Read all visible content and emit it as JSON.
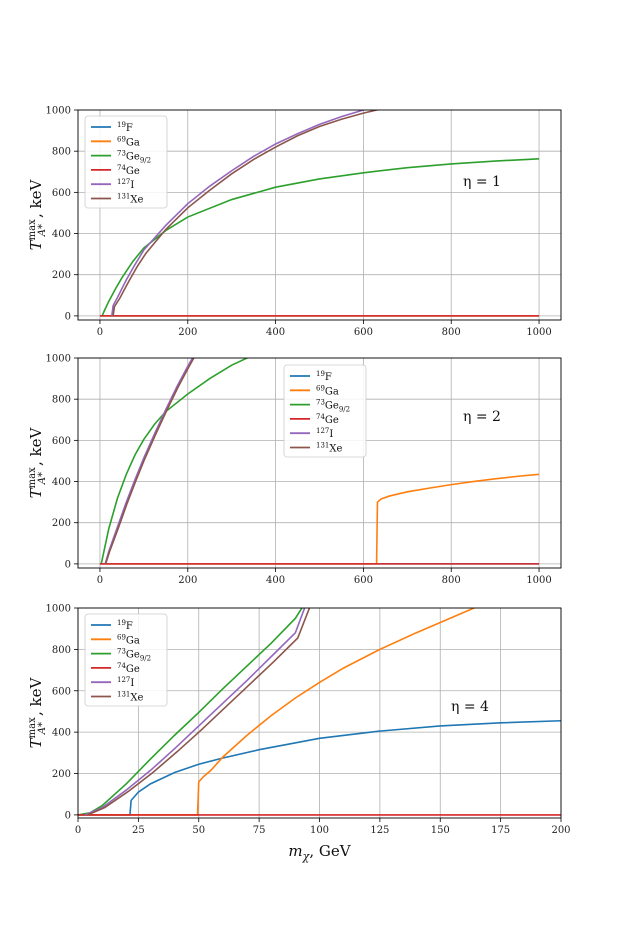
{
  "chart_data": [
    {
      "type": "line",
      "annotation": "η = 1",
      "xlim": [
        -50,
        1050
      ],
      "ylim": [
        -20,
        1000
      ],
      "xticks": [
        0,
        200,
        400,
        600,
        800,
        1000
      ],
      "yticks": [
        0,
        200,
        400,
        600,
        800,
        1000
      ],
      "ylabel": "T^max_A*, keV",
      "xlabel": "",
      "grid": true,
      "legend_placement": "upper-left",
      "series": [
        {
          "name": "19F",
          "iso": "19",
          "el": "F",
          "sub": "",
          "color": "#1f77b4",
          "x": [
            0,
            1000
          ],
          "y": [
            0,
            0
          ]
        },
        {
          "name": "69Ga",
          "iso": "69",
          "el": "Ga",
          "sub": "",
          "color": "#ff7f0e",
          "x": [
            0,
            1000
          ],
          "y": [
            0,
            0
          ]
        },
        {
          "name": "73Ge9/2",
          "iso": "73",
          "el": "Ge",
          "sub": "9/2",
          "color": "#2ca02c",
          "x": [
            5,
            10,
            20,
            35,
            50,
            75,
            100,
            150,
            200,
            300,
            400,
            500,
            600,
            700,
            800,
            900,
            1000
          ],
          "y": [
            0,
            25,
            70,
            130,
            185,
            265,
            330,
            415,
            480,
            565,
            625,
            665,
            695,
            720,
            738,
            752,
            763
          ]
        },
        {
          "name": "74Ge",
          "iso": "74",
          "el": "Ge",
          "sub": "",
          "color": "#d62728",
          "x": [
            0,
            1000
          ],
          "y": [
            0,
            0
          ]
        },
        {
          "name": "127I",
          "iso": "127",
          "el": "I",
          "sub": "",
          "color": "#9467bd",
          "x": [
            27,
            30,
            40,
            60,
            80,
            100,
            150,
            200,
            250,
            300,
            350,
            400,
            450,
            500,
            550,
            600,
            615
          ],
          "y": [
            0,
            50,
            90,
            175,
            250,
            320,
            440,
            545,
            630,
            705,
            775,
            835,
            885,
            930,
            968,
            1000,
            1005
          ]
        },
        {
          "name": "131Xe",
          "iso": "131",
          "el": "Xe",
          "sub": "",
          "color": "#8c564b",
          "x": [
            30,
            33,
            45,
            65,
            85,
            105,
            150,
            200,
            250,
            300,
            350,
            400,
            450,
            500,
            550,
            600,
            640
          ],
          "y": [
            0,
            45,
            85,
            165,
            240,
            305,
            420,
            525,
            610,
            690,
            760,
            820,
            875,
            920,
            955,
            985,
            1005
          ]
        }
      ]
    },
    {
      "type": "line",
      "annotation": "η = 2",
      "xlim": [
        -50,
        1050
      ],
      "ylim": [
        -20,
        1000
      ],
      "xticks": [
        0,
        200,
        400,
        600,
        800,
        1000
      ],
      "yticks": [
        0,
        200,
        400,
        600,
        800,
        1000
      ],
      "ylabel": "T^max_A*, keV",
      "xlabel": "",
      "grid": true,
      "legend_placement": "upper-center",
      "series": [
        {
          "name": "19F",
          "iso": "19",
          "el": "F",
          "sub": "",
          "color": "#1f77b4",
          "x": [
            0,
            1000
          ],
          "y": [
            0,
            0
          ]
        },
        {
          "name": "69Ga",
          "iso": "69",
          "el": "Ga",
          "sub": "",
          "color": "#ff7f0e",
          "x": [
            0,
            630,
            630,
            632,
            640,
            660,
            700,
            750,
            800,
            850,
            900,
            950,
            1000
          ],
          "y": [
            0,
            0,
            0,
            300,
            315,
            330,
            350,
            368,
            385,
            400,
            413,
            425,
            435
          ]
        },
        {
          "name": "73Ge9/2",
          "iso": "73",
          "el": "Ge",
          "sub": "9/2",
          "color": "#2ca02c",
          "x": [
            3,
            10,
            20,
            40,
            60,
            80,
            100,
            125,
            150,
            200,
            250,
            300,
            340
          ],
          "y": [
            0,
            70,
            170,
            320,
            435,
            530,
            605,
            680,
            740,
            825,
            900,
            965,
            1005
          ]
        },
        {
          "name": "74Ge",
          "iso": "74",
          "el": "Ge",
          "sub": "",
          "color": "#d62728",
          "x": [
            0,
            1000
          ],
          "y": [
            0,
            0
          ]
        },
        {
          "name": "127I",
          "iso": "127",
          "el": "I",
          "sub": "",
          "color": "#9467bd",
          "x": [
            12,
            20,
            40,
            60,
            80,
            100,
            125,
            150,
            175,
            200,
            212
          ],
          "y": [
            0,
            60,
            180,
            300,
            410,
            515,
            635,
            750,
            860,
            960,
            1005
          ]
        },
        {
          "name": "131Xe",
          "iso": "131",
          "el": "Xe",
          "sub": "",
          "color": "#8c564b",
          "x": [
            13,
            22,
            42,
            62,
            82,
            102,
            127,
            152,
            177,
            202,
            215
          ],
          "y": [
            0,
            60,
            175,
            295,
            405,
            510,
            630,
            745,
            855,
            955,
            1005
          ]
        }
      ]
    },
    {
      "type": "line",
      "annotation": "η = 4",
      "xlim": [
        0,
        200
      ],
      "ylim": [
        -15,
        1000
      ],
      "xticks": [
        0,
        25,
        50,
        75,
        100,
        125,
        150,
        175,
        200
      ],
      "yticks": [
        0,
        200,
        400,
        600,
        800,
        1000
      ],
      "ylabel": "T^max_A*, keV",
      "xlabel": "m_χ, GeV",
      "grid": true,
      "legend_placement": "upper-left",
      "series": [
        {
          "name": "19F",
          "iso": "19",
          "el": "F",
          "sub": "",
          "color": "#1f77b4",
          "x": [
            0,
            21.5,
            21.5,
            22,
            25,
            30,
            40,
            50,
            60,
            75,
            100,
            125,
            150,
            175,
            200
          ],
          "y": [
            0,
            0,
            0,
            70,
            110,
            150,
            205,
            245,
            275,
            315,
            370,
            405,
            430,
            445,
            455
          ]
        },
        {
          "name": "69Ga",
          "iso": "69",
          "el": "Ga",
          "sub": "",
          "color": "#ff7f0e",
          "x": [
            0,
            49.5,
            49.5,
            50,
            52,
            55,
            60,
            70,
            80,
            90,
            100,
            110,
            125,
            140,
            150,
            160,
            165
          ],
          "y": [
            0,
            0,
            0,
            160,
            185,
            215,
            280,
            385,
            480,
            565,
            640,
            710,
            800,
            880,
            930,
            980,
            1005
          ]
        },
        {
          "name": "73Ge9/2",
          "iso": "73",
          "el": "Ge",
          "sub": "9/2",
          "color": "#2ca02c",
          "x": [
            0,
            5,
            10,
            20,
            30,
            40,
            50,
            60,
            70,
            80,
            90,
            93
          ],
          "y": [
            0,
            10,
            45,
            150,
            270,
            385,
            495,
            610,
            720,
            830,
            950,
            1005
          ]
        },
        {
          "name": "74Ge",
          "iso": "74",
          "el": "Ge",
          "sub": "",
          "color": "#d62728",
          "x": [
            0,
            200
          ],
          "y": [
            0,
            0
          ]
        },
        {
          "name": "127I",
          "iso": "127",
          "el": "I",
          "sub": "",
          "color": "#9467bd",
          "x": [
            3,
            10,
            20,
            30,
            40,
            50,
            60,
            70,
            80,
            90,
            94
          ],
          "y": [
            0,
            35,
            120,
            215,
            320,
            430,
            540,
            650,
            765,
            880,
            1005
          ]
        },
        {
          "name": "131Xe",
          "iso": "131",
          "el": "Xe",
          "sub": "",
          "color": "#8c564b",
          "x": [
            4,
            11,
            21,
            31,
            41,
            51,
            61,
            71,
            81,
            91,
            96
          ],
          "y": [
            0,
            35,
            115,
            205,
            305,
            410,
            520,
            630,
            740,
            855,
            1005
          ]
        }
      ]
    }
  ]
}
